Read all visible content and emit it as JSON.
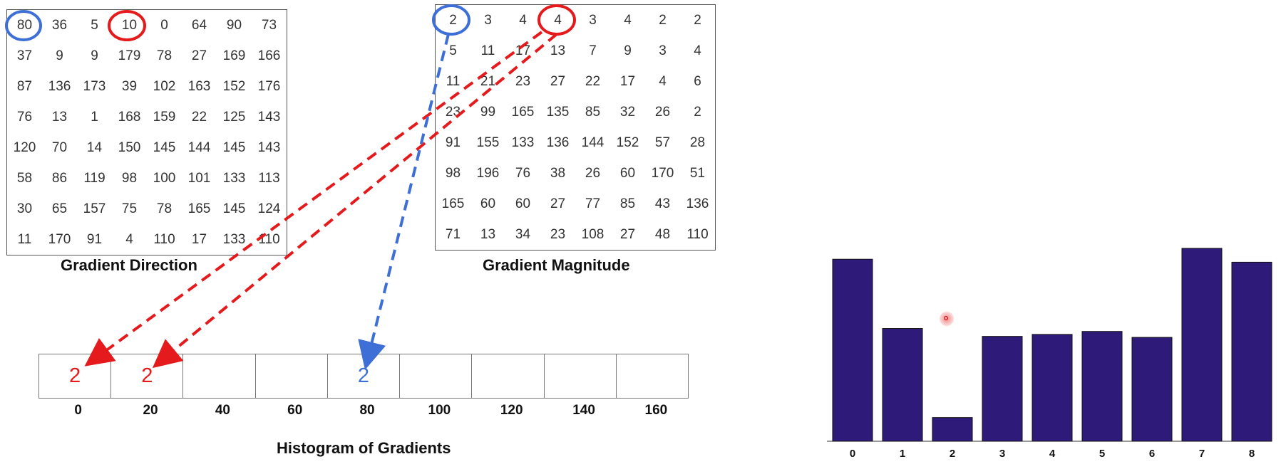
{
  "direction": {
    "caption": "Gradient Direction",
    "rows": [
      [
        "80",
        "36",
        "5",
        "10",
        "0",
        "64",
        "90",
        "73"
      ],
      [
        "37",
        "9",
        "9",
        "179",
        "78",
        "27",
        "169",
        "166"
      ],
      [
        "87",
        "136",
        "173",
        "39",
        "102",
        "163",
        "152",
        "176"
      ],
      [
        "76",
        "13",
        "1",
        "168",
        "159",
        "22",
        "125",
        "143"
      ],
      [
        "120",
        "70",
        "14",
        "150",
        "145",
        "144",
        "145",
        "143"
      ],
      [
        "58",
        "86",
        "119",
        "98",
        "100",
        "101",
        "133",
        "113"
      ],
      [
        "30",
        "65",
        "157",
        "75",
        "78",
        "165",
        "145",
        "124"
      ],
      [
        "11",
        "170",
        "91",
        "4",
        "110",
        "17",
        "133",
        "110"
      ]
    ]
  },
  "magnitude": {
    "caption": "Gradient Magnitude",
    "rows": [
      [
        "2",
        "3",
        "4",
        "4",
        "3",
        "4",
        "2",
        "2"
      ],
      [
        "5",
        "11",
        "17",
        "13",
        "7",
        "9",
        "3",
        "4"
      ],
      [
        "11",
        "21",
        "23",
        "27",
        "22",
        "17",
        "4",
        "6"
      ],
      [
        "23",
        "99",
        "165",
        "135",
        "85",
        "32",
        "26",
        "2"
      ],
      [
        "91",
        "155",
        "133",
        "136",
        "144",
        "152",
        "57",
        "28"
      ],
      [
        "98",
        "196",
        "76",
        "38",
        "26",
        "60",
        "170",
        "51"
      ],
      [
        "165",
        "60",
        "60",
        "27",
        "77",
        "85",
        "43",
        "136"
      ],
      [
        "71",
        "13",
        "34",
        "23",
        "108",
        "27",
        "48",
        "110"
      ]
    ]
  },
  "histogram": {
    "caption": "Histogram of Gradients",
    "bins": [
      "0",
      "20",
      "40",
      "60",
      "80",
      "100",
      "120",
      "140",
      "160"
    ],
    "values": [
      "2",
      "2",
      "",
      "",
      "2",
      "",
      "",
      "",
      ""
    ],
    "value_colors": [
      "#e41a1c",
      "#e41a1c",
      "",
      "",
      "#3d6fd6",
      "",
      "",
      "",
      ""
    ]
  },
  "colors": {
    "red": "#e41a1c",
    "blue": "#3d6fd6",
    "bar_fill": "#2e1a78"
  },
  "chart_data": {
    "type": "bar",
    "categories": [
      "0",
      "1",
      "2",
      "3",
      "4",
      "5",
      "6",
      "7",
      "8"
    ],
    "values": [
      0.92,
      0.57,
      0.12,
      0.53,
      0.54,
      0.555,
      0.525,
      0.975,
      0.905
    ],
    "title": "",
    "xlabel": "",
    "ylabel": "",
    "ylim": [
      0,
      1
    ],
    "grid": false,
    "legend": "none"
  }
}
